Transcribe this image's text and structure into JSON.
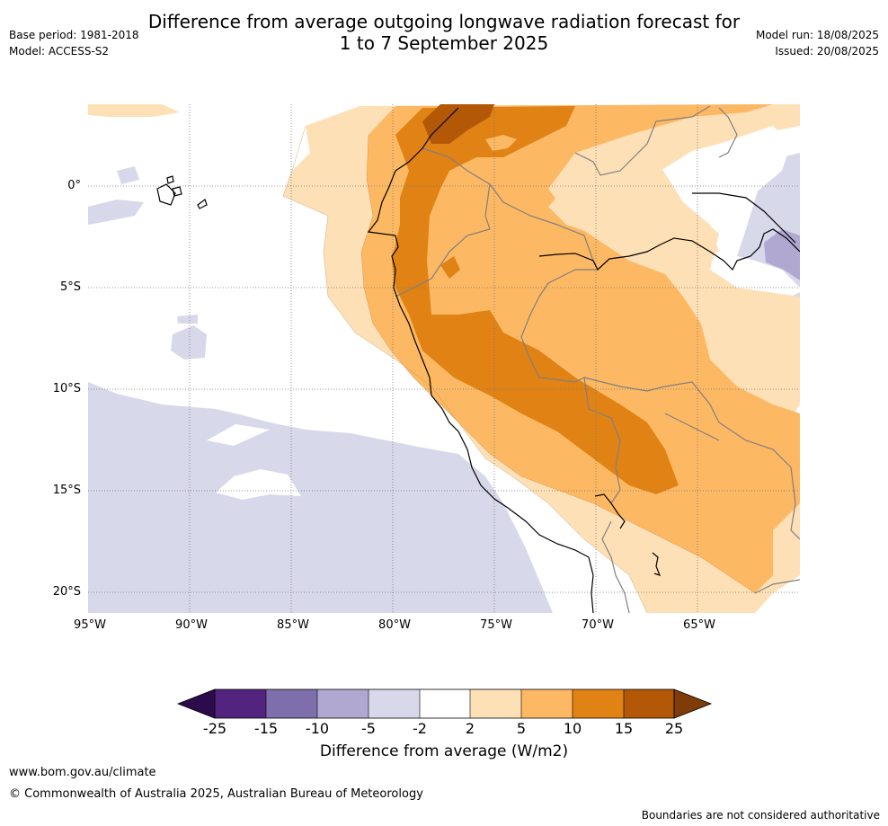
{
  "title_line1": "Difference from average outgoing longwave radiation forecast for",
  "title_line2": "1 to 7 September 2025",
  "base_period": "Base period: 1981-2018",
  "model": "Model: ACCESS-S2",
  "model_run": "Model run: 18/08/2025",
  "issued": "Issued: 20/08/2025",
  "lat_labels": [
    "0°",
    "5°S",
    "10°S",
    "15°S",
    "20°S"
  ],
  "lon_labels": [
    "95°W",
    "90°W",
    "85°W",
    "80°W",
    "75°W",
    "70°W",
    "65°W"
  ],
  "colorbar": {
    "title": "Difference from average (W/m2)",
    "ticks": [
      "-25",
      "-15",
      "-10",
      "-5",
      "-2",
      "2",
      "5",
      "10",
      "15",
      "25"
    ],
    "colors": {
      "below_-25": "#2d0a4b",
      "-25_-15": "#52247f",
      "-15_-10": "#7e6eab",
      "-10_-5": "#b0a8d1",
      "-5_-2": "#d8d8eb",
      "-2_2": "#ffffff",
      "2_5": "#fee0b6",
      "5_10": "#fdb863",
      "10_15": "#e08214",
      "15_25": "#b35806",
      "above_25": "#7f3b08"
    }
  },
  "footer_url": "www.bom.gov.au/climate",
  "footer_copyright": "© Commonwealth of Australia 2025, Australian Bureau of Meteorology",
  "footer_disclaimer": "Boundaries are not considered authoritative"
}
